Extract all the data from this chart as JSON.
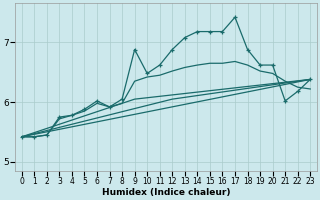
{
  "xlabel": "Humidex (Indice chaleur)",
  "bg_color": "#cce8ec",
  "grid_color": "#aacccc",
  "line_color": "#1a6b6b",
  "xlim": [
    -0.5,
    23.5
  ],
  "ylim": [
    4.85,
    7.65
  ],
  "yticks": [
    5,
    6,
    7
  ],
  "xticks": [
    0,
    1,
    2,
    3,
    4,
    5,
    6,
    7,
    8,
    9,
    10,
    11,
    12,
    13,
    14,
    15,
    16,
    17,
    18,
    19,
    20,
    21,
    22,
    23
  ],
  "series_main_x": [
    0,
    1,
    2,
    3,
    4,
    5,
    6,
    7,
    8,
    9,
    10,
    11,
    12,
    13,
    14,
    15,
    16,
    17,
    18,
    19,
    20,
    21,
    22,
    23
  ],
  "series_main_y": [
    5.42,
    5.42,
    5.45,
    5.75,
    5.78,
    5.88,
    6.02,
    5.92,
    6.05,
    6.88,
    6.48,
    6.62,
    6.88,
    7.08,
    7.18,
    7.18,
    7.18,
    7.42,
    6.88,
    6.62,
    6.62,
    6.02,
    6.18,
    6.38
  ],
  "series_smooth_x": [
    0,
    1,
    2,
    3,
    4,
    5,
    6,
    7,
    8,
    9,
    10,
    11,
    12,
    13,
    14,
    15,
    16,
    17,
    18,
    19,
    20,
    21,
    22,
    23
  ],
  "series_smooth_y": [
    5.42,
    5.42,
    5.45,
    5.72,
    5.78,
    5.85,
    5.98,
    5.92,
    5.98,
    6.35,
    6.42,
    6.45,
    6.52,
    6.58,
    6.62,
    6.65,
    6.65,
    6.68,
    6.62,
    6.52,
    6.48,
    6.35,
    6.25,
    6.22
  ],
  "line1_x": [
    0,
    23
  ],
  "line1_y": [
    5.42,
    6.38
  ],
  "line2_x": [
    0,
    9,
    23
  ],
  "line2_y": [
    5.42,
    6.05,
    6.38
  ],
  "line3_x": [
    0,
    12,
    23
  ],
  "line3_y": [
    5.42,
    6.05,
    6.38
  ]
}
